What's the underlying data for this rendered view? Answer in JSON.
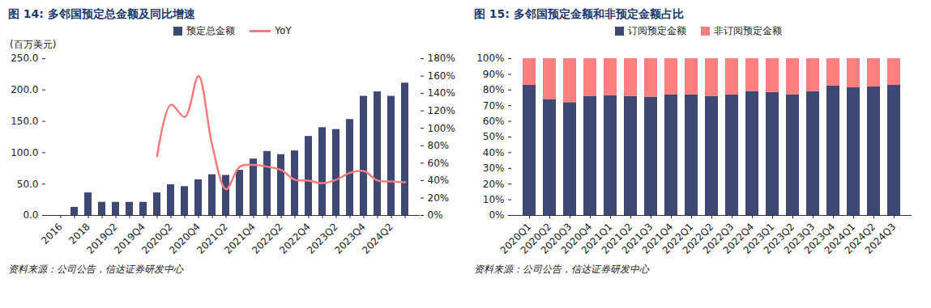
{
  "chart_data": [
    {
      "type": "bar",
      "title": "图 14: 多邻国预定总金额及同比增速",
      "source": "资料来源：公司公告，信达证券研发中心",
      "ylabel": "(百万美元)",
      "legend": "top",
      "grid": false,
      "categories": [
        "2016",
        null,
        "2018",
        null,
        "2019Q2",
        null,
        "2019Q4",
        null,
        "2020Q2",
        null,
        "2020Q4",
        null,
        "2021Q2",
        null,
        "2021Q4",
        null,
        "2022Q2",
        null,
        "2022Q4",
        null,
        "2023Q2",
        null,
        "2023Q4",
        null,
        "2024Q2",
        null
      ],
      "series": [
        {
          "name": "预定总金额",
          "type": "bar",
          "color": "#3E4872",
          "values": [
            null,
            13,
            36,
            21,
            21,
            21,
            21,
            36,
            49,
            46,
            57,
            65,
            64,
            72,
            90,
            102,
            97,
            103,
            126,
            140,
            137,
            153,
            190,
            197,
            190,
            211
          ]
        },
        {
          "name": "YoY",
          "type": "line",
          "axis": "y2",
          "color": "#F47C7E",
          "values": [
            null,
            null,
            null,
            null,
            null,
            null,
            null,
            68,
            127,
            113,
            160,
            80,
            30,
            56,
            58,
            56,
            52,
            41,
            40,
            37,
            41,
            49,
            51,
            40,
            39,
            38
          ]
        }
      ],
      "ylim": [
        0,
        250
      ],
      "yticks": [
        {
          "value": 0,
          "label": "0.0"
        },
        {
          "value": 50,
          "label": "50.0"
        },
        {
          "value": 100,
          "label": "100.0"
        },
        {
          "value": 150,
          "label": "150.0"
        },
        {
          "value": 200,
          "label": "200.0"
        },
        {
          "value": 250,
          "label": "250.0"
        }
      ],
      "y2lim": [
        0,
        180
      ],
      "y2ticks": [
        {
          "value": 0,
          "label": "0%"
        },
        {
          "value": 20,
          "label": "20%"
        },
        {
          "value": 40,
          "label": "40%"
        },
        {
          "value": 60,
          "label": "60%"
        },
        {
          "value": 80,
          "label": "80%"
        },
        {
          "value": 100,
          "label": "100%"
        },
        {
          "value": 120,
          "label": "120%"
        },
        {
          "value": 140,
          "label": "140%"
        },
        {
          "value": 160,
          "label": "160%"
        },
        {
          "value": 180,
          "label": "180%"
        }
      ]
    },
    {
      "type": "bar",
      "title": "图 15: 多邻国预定金额和非预定金额占比",
      "source": "资料来源：公司公告，信达证券研发中心",
      "legend": "top",
      "grid": false,
      "stacked": true,
      "categories": [
        "2020Q1",
        "2020Q2",
        "2020Q3",
        "2020Q4",
        "2021Q1",
        "2021Q2",
        "2021Q3",
        "2021Q4",
        "2022Q1",
        "2022Q2",
        "2022Q3",
        "2022Q4",
        "2023Q1",
        "2023Q2",
        "2023Q3",
        "2023Q4",
        "2024Q1",
        "2024Q2",
        "2024Q3"
      ],
      "series": [
        {
          "name": "订阅预定金额",
          "color": "#3E4872",
          "values": [
            83,
            74,
            72,
            76,
            76.5,
            76,
            75.5,
            77,
            77,
            76,
            77,
            79,
            78.5,
            77,
            79,
            82.5,
            81.5,
            82,
            83
          ]
        },
        {
          "name": "非订阅预定金额",
          "color": "#FF7F7F",
          "values": [
            17,
            26,
            28,
            24,
            23.5,
            24,
            24.5,
            23,
            23,
            24,
            23,
            21,
            21.5,
            23,
            21,
            17.5,
            18.5,
            18,
            17
          ]
        }
      ],
      "ylim": [
        0,
        100
      ],
      "yticks": [
        {
          "value": 0,
          "label": "0%"
        },
        {
          "value": 10,
          "label": "10%"
        },
        {
          "value": 20,
          "label": "20%"
        },
        {
          "value": 30,
          "label": "30%"
        },
        {
          "value": 40,
          "label": "40%"
        },
        {
          "value": 50,
          "label": "50%"
        },
        {
          "value": 60,
          "label": "60%"
        },
        {
          "value": 70,
          "label": "70%"
        },
        {
          "value": 80,
          "label": "80%"
        },
        {
          "value": 90,
          "label": "90%"
        },
        {
          "value": 100,
          "label": "100%"
        }
      ]
    }
  ]
}
